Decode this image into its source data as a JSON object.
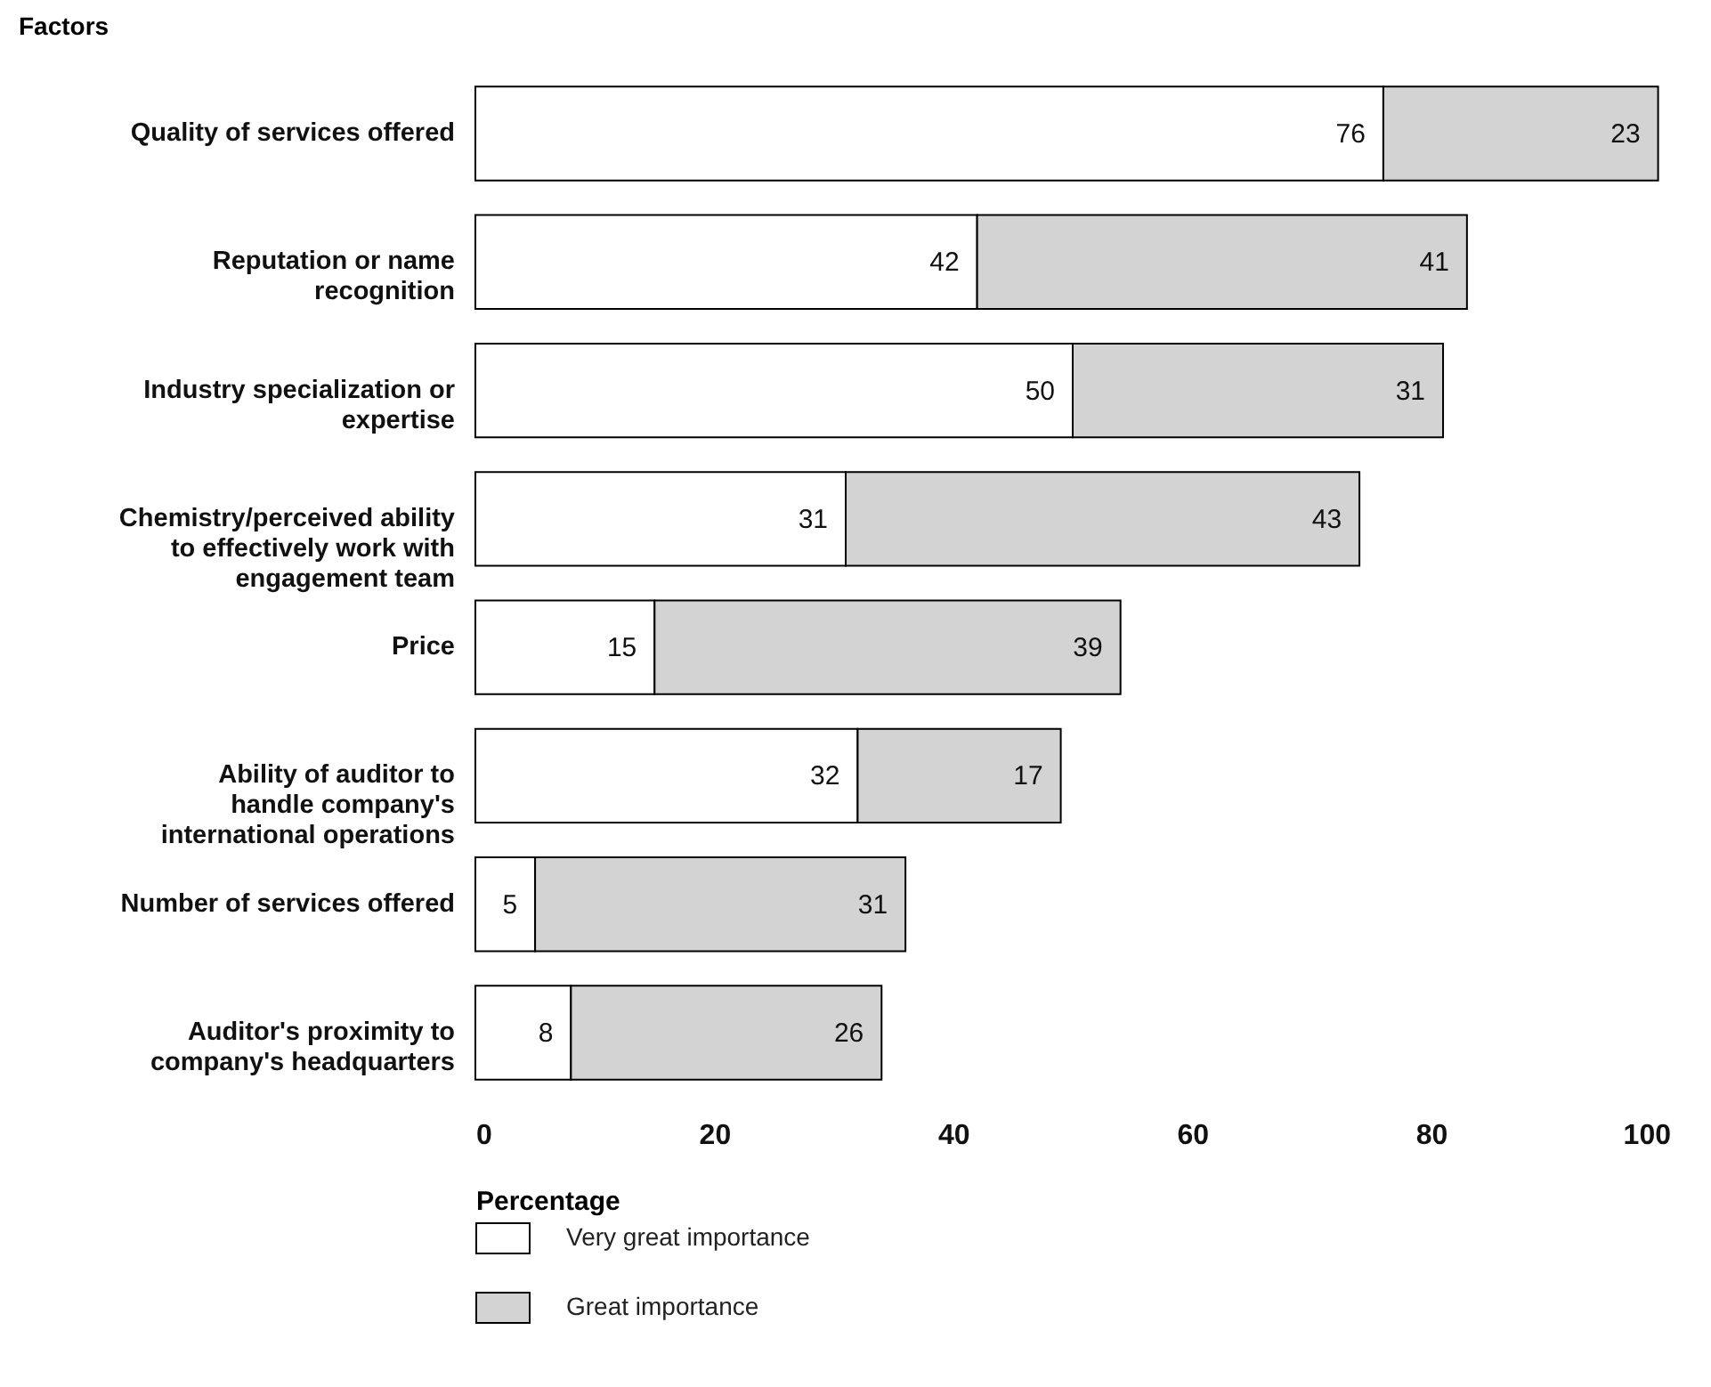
{
  "chart_data": {
    "type": "bar",
    "orientation": "horizontal",
    "stacked": true,
    "ylabel": "Factors",
    "xlabel": "Percentage",
    "categories": [
      "Quality of services offered",
      "Reputation or name recognition",
      "Industry specialization or expertise",
      "Chemistry/perceived ability to effectively work with engagement team",
      "Price",
      "Ability of auditor to handle company's international operations",
      "Number of services offered",
      "Auditor's proximity to company's headquarters"
    ],
    "series": [
      {
        "name": "Very great importance",
        "color": "#ffffff",
        "values": [
          76,
          42,
          50,
          31,
          15,
          32,
          5,
          8
        ]
      },
      {
        "name": "Great importance",
        "color": "#d3d3d3",
        "values": [
          23,
          41,
          31,
          43,
          39,
          17,
          31,
          26
        ]
      }
    ],
    "xlim": [
      0,
      100
    ],
    "xticks": [
      0,
      20,
      40,
      60,
      80,
      100
    ],
    "grid": false,
    "legend": "bottom",
    "data_labels": true
  }
}
